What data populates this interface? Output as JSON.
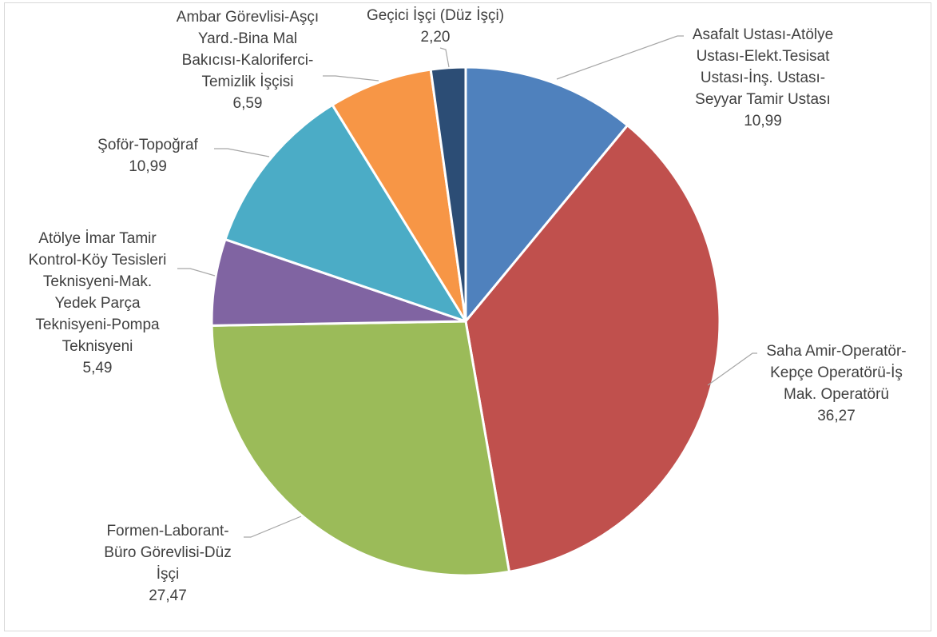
{
  "chart_data": {
    "type": "pie",
    "title": "",
    "slices": [
      {
        "label_lines": [
          "Asafalt Ustası-Atölye",
          "Ustası-Elekt.Tesisat",
          "Ustası-İnş. Ustası-",
          "Seyyar Tamir Ustası"
        ],
        "value": 10.99,
        "value_label": "10,99",
        "color": "#4f81bd"
      },
      {
        "label_lines": [
          "Saha Amir-Operatör-",
          "Kepçe Operatörü-İş",
          "Mak. Operatörü"
        ],
        "value": 36.27,
        "value_label": "36,27",
        "color": "#c0504d"
      },
      {
        "label_lines": [
          "Formen-Laborant-",
          "Büro Görevlisi-Düz",
          "İşçi"
        ],
        "value": 27.47,
        "value_label": "27,47",
        "color": "#9bbb59"
      },
      {
        "label_lines": [
          "Atölye İmar Tamir",
          "Kontrol-Köy Tesisleri",
          "Teknisyeni-Mak.",
          "Yedek Parça",
          "Teknisyeni-Pompa",
          "Teknisyeni"
        ],
        "value": 5.49,
        "value_label": "5,49",
        "color": "#8064a2"
      },
      {
        "label_lines": [
          "Şoför-Topoğraf"
        ],
        "value": 10.99,
        "value_label": "10,99",
        "color": "#4bacc6"
      },
      {
        "label_lines": [
          "Ambar Görevlisi-Aşçı",
          "Yard.-Bina Mal",
          "Bakıcısı-Kaloriferci-",
          "Temizlik İşçisi"
        ],
        "value": 6.59,
        "value_label": "6,59",
        "color": "#f79646"
      },
      {
        "label_lines": [
          "Geçici İşçi (Düz İşçi)"
        ],
        "value": 2.2,
        "value_label": "2,20",
        "color": "#2c4d75"
      }
    ],
    "legend": "none"
  }
}
